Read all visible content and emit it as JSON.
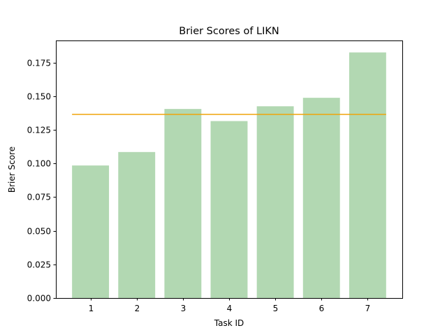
{
  "chart_data": {
    "type": "bar",
    "title": "Brier Scores of LIKN",
    "xlabel": "Task ID",
    "ylabel": "Brier Score",
    "categories": [
      "1",
      "2",
      "3",
      "4",
      "5",
      "6",
      "7"
    ],
    "values": [
      0.0985,
      0.1085,
      0.1405,
      0.1315,
      0.1425,
      0.1488,
      0.1825
    ],
    "reference_line": 0.1365,
    "ylim": [
      0,
      0.1914
    ],
    "yticks": [
      "0.000",
      "0.025",
      "0.050",
      "0.075",
      "0.100",
      "0.125",
      "0.150",
      "0.175"
    ],
    "grid": false,
    "colors": {
      "bar": "#b2d8b2",
      "reference_line": "#f0a30a"
    }
  }
}
